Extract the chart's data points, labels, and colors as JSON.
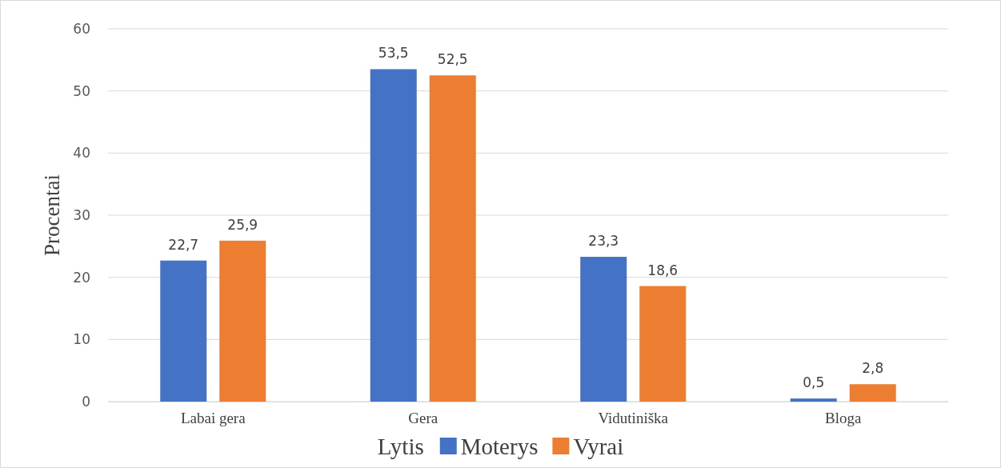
{
  "chart_data": {
    "type": "bar",
    "ylabel": "Procentai",
    "legend_title": "Lytis",
    "categories": [
      "Labai gera",
      "Gera",
      "Vidutiniška",
      "Bloga"
    ],
    "series": [
      {
        "name": "Moterys",
        "color": "#4472c4",
        "values": [
          22.7,
          53.5,
          23.3,
          0.5
        ],
        "value_labels": [
          "22,7",
          "53,5",
          "23,3",
          "0,5"
        ]
      },
      {
        "name": "Vyrai",
        "color": "#ed7d31",
        "values": [
          25.9,
          52.5,
          18.6,
          2.8
        ],
        "value_labels": [
          "25,9",
          "52,5",
          "18,6",
          "2,8"
        ]
      }
    ],
    "ylim": [
      0,
      60
    ],
    "yticks": [
      0,
      10,
      20,
      30,
      40,
      50,
      60
    ],
    "grid": "y",
    "legend": "bottom"
  }
}
